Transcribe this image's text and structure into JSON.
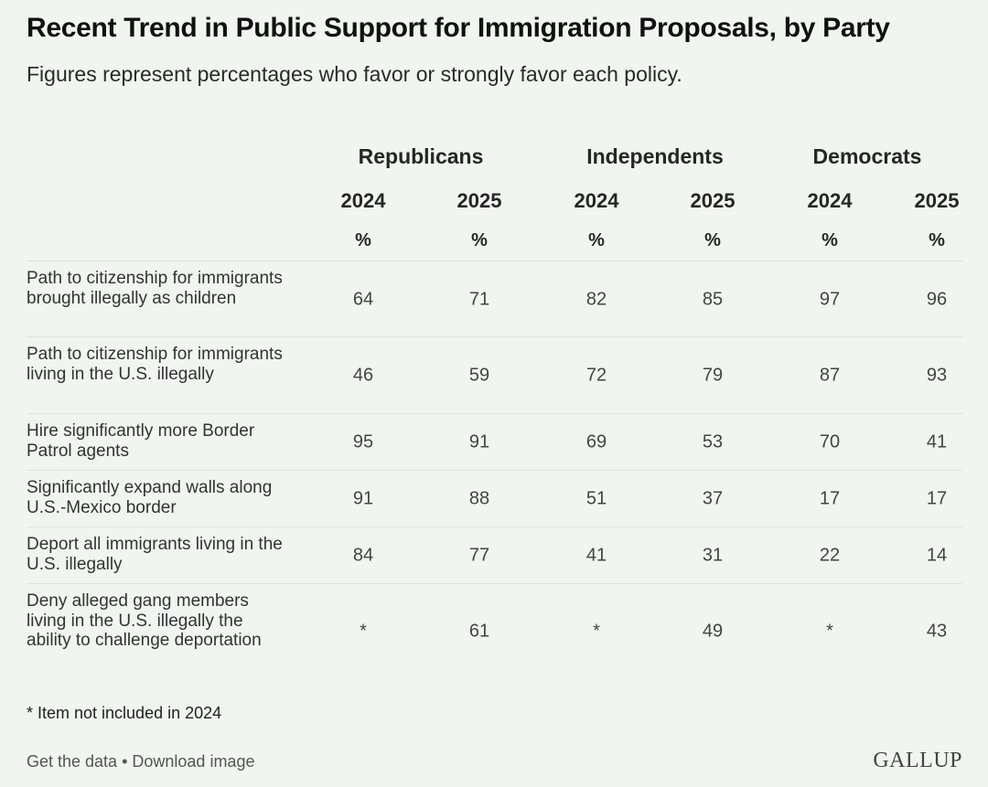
{
  "header": {
    "title": "Recent Trend in Public Support for Immigration Proposals, by Party",
    "subtitle": "Figures represent percentages who favor or strongly favor each policy."
  },
  "chart_data": {
    "type": "table",
    "groups": [
      "Republicans",
      "Independents",
      "Democrats"
    ],
    "years": [
      "2024",
      "2025",
      "2024",
      "2025",
      "2024",
      "2025"
    ],
    "unit": "%",
    "rows": [
      {
        "label": "Path to citizenship for immigrants brought illegally as children",
        "values": [
          "64",
          "71",
          "82",
          "85",
          "97",
          "96"
        ]
      },
      {
        "label": "Path to citizenship for immigrants living in the U.S. illegally",
        "values": [
          "46",
          "59",
          "72",
          "79",
          "87",
          "93"
        ]
      },
      {
        "label": "Hire significantly more Border Patrol agents",
        "values": [
          "95",
          "91",
          "69",
          "53",
          "70",
          "41"
        ]
      },
      {
        "label": "Significantly expand walls along U.S.-Mexico border",
        "values": [
          "91",
          "88",
          "51",
          "37",
          "17",
          "17"
        ]
      },
      {
        "label": "Deport all immigrants living in the U.S. illegally",
        "values": [
          "84",
          "77",
          "41",
          "31",
          "22",
          "14"
        ]
      },
      {
        "label": "Deny alleged gang members living in the U.S. illegally the ability to challenge deportation",
        "values": [
          "*",
          "61",
          "*",
          "49",
          "*",
          "43"
        ]
      }
    ]
  },
  "footnote": "* Item not included in 2024",
  "links": {
    "get_data": "Get the data",
    "separator": " • ",
    "download": "Download image"
  },
  "logo": "GALLUP"
}
